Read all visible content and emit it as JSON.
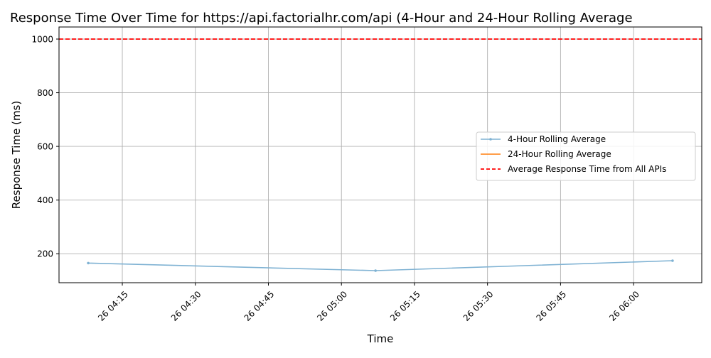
{
  "chart_data": {
    "type": "line",
    "title": "Response Time Over Time for https://api.factorialhr.com/api (4-Hour and 24-Hour Rolling Average",
    "xlabel": "Time",
    "ylabel": "Response Time (ms)",
    "x_tick_labels": [
      "26 04:15",
      "26 04:30",
      "26 04:45",
      "26 05:00",
      "26 05:15",
      "26 05:30",
      "26 05:45",
      "26 06:00"
    ],
    "x_ticks": [
      "04:15",
      "04:30",
      "04:45",
      "05:00",
      "05:15",
      "05:30",
      "05:45",
      "06:00"
    ],
    "xlim": [
      "04:02",
      "06:14"
    ],
    "y_ticks": [
      200,
      400,
      600,
      800,
      1000
    ],
    "ylim": [
      92,
      1045
    ],
    "grid": true,
    "legend_position": "center-right",
    "series": [
      {
        "name": "4-Hour Rolling Average",
        "color": "#7fb2d3",
        "marker": "dot",
        "x": [
          "04:08",
          "05:07",
          "06:08"
        ],
        "values": [
          165,
          137,
          174
        ]
      },
      {
        "name": "24-Hour Rolling Average",
        "color": "#ff7f0e",
        "x": [],
        "values": []
      }
    ],
    "reference_line": {
      "name": "Average Response Time from All APIs",
      "value": 1000,
      "color": "#ff0000",
      "style": "dashed"
    }
  }
}
